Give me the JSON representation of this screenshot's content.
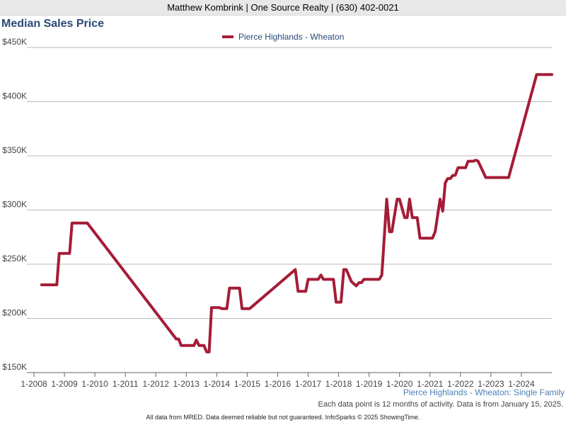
{
  "header": {
    "text": "Matthew Kombrink | One Source Realty | (630) 402-0021"
  },
  "chart_data": {
    "type": "line",
    "title": "Median Sales Price",
    "series": [
      {
        "name": "Pierce Highlands - Wheaton",
        "color": "#a51c36",
        "points": [
          [
            2008.25,
            231000
          ],
          [
            2008.75,
            231000
          ],
          [
            2008.83,
            260000
          ],
          [
            2009.17,
            260000
          ],
          [
            2009.25,
            288000
          ],
          [
            2009.75,
            288000
          ],
          [
            2012.67,
            181000
          ],
          [
            2012.75,
            181000
          ],
          [
            2012.83,
            175000
          ],
          [
            2013.25,
            175000
          ],
          [
            2013.33,
            180000
          ],
          [
            2013.42,
            175000
          ],
          [
            2013.58,
            175000
          ],
          [
            2013.67,
            169000
          ],
          [
            2013.75,
            169000
          ],
          [
            2013.83,
            210000
          ],
          [
            2014.08,
            210000
          ],
          [
            2014.17,
            209000
          ],
          [
            2014.33,
            209000
          ],
          [
            2014.42,
            228000
          ],
          [
            2014.75,
            228000
          ],
          [
            2014.83,
            209000
          ],
          [
            2015.08,
            209000
          ],
          [
            2016.58,
            245000
          ],
          [
            2016.67,
            225000
          ],
          [
            2016.92,
            225000
          ],
          [
            2017.0,
            236000
          ],
          [
            2017.33,
            236000
          ],
          [
            2017.42,
            240000
          ],
          [
            2017.5,
            236000
          ],
          [
            2017.83,
            236000
          ],
          [
            2017.92,
            215000
          ],
          [
            2018.08,
            215000
          ],
          [
            2018.17,
            245000
          ],
          [
            2018.25,
            245000
          ],
          [
            2018.42,
            234000
          ],
          [
            2018.58,
            230000
          ],
          [
            2018.67,
            233000
          ],
          [
            2018.75,
            233000
          ],
          [
            2018.83,
            236000
          ],
          [
            2019.33,
            236000
          ],
          [
            2019.42,
            240000
          ],
          [
            2019.58,
            310000
          ],
          [
            2019.67,
            280000
          ],
          [
            2019.75,
            280000
          ],
          [
            2019.92,
            310000
          ],
          [
            2020.0,
            310000
          ],
          [
            2020.17,
            293000
          ],
          [
            2020.25,
            293000
          ],
          [
            2020.33,
            310000
          ],
          [
            2020.42,
            293000
          ],
          [
            2020.58,
            293000
          ],
          [
            2020.67,
            274000
          ],
          [
            2021.08,
            274000
          ],
          [
            2021.17,
            280000
          ],
          [
            2021.33,
            310000
          ],
          [
            2021.42,
            299000
          ],
          [
            2021.5,
            325000
          ],
          [
            2021.58,
            329000
          ],
          [
            2021.67,
            329000
          ],
          [
            2021.75,
            332000
          ],
          [
            2021.83,
            332000
          ],
          [
            2021.92,
            339000
          ],
          [
            2022.17,
            339000
          ],
          [
            2022.25,
            345000
          ],
          [
            2022.42,
            345000
          ],
          [
            2022.5,
            346000
          ],
          [
            2022.58,
            345000
          ],
          [
            2022.83,
            330000
          ],
          [
            2023.58,
            330000
          ],
          [
            2024.5,
            425000
          ],
          [
            2025.0,
            425000
          ]
        ]
      }
    ],
    "y_ticks": [
      150000,
      200000,
      250000,
      300000,
      350000,
      400000,
      450000
    ],
    "y_tick_labels": [
      "$150K",
      "$200K",
      "$250K",
      "$300K",
      "$350K",
      "$400K",
      "$450K"
    ],
    "x_ticks": [
      2008,
      2009,
      2010,
      2011,
      2012,
      2013,
      2014,
      2015,
      2016,
      2017,
      2018,
      2019,
      2020,
      2021,
      2022,
      2023,
      2024
    ],
    "x_tick_labels": [
      "1-2008",
      "1-2009",
      "1-2010",
      "1-2011",
      "1-2012",
      "1-2013",
      "1-2014",
      "1-2015",
      "1-2016",
      "1-2017",
      "1-2018",
      "1-2019",
      "1-2020",
      "1-2021",
      "1-2022",
      "1-2023",
      "1-2024"
    ],
    "xlim": [
      2008,
      2025
    ],
    "ylim": [
      150000,
      450000
    ],
    "grid": true,
    "legend_position": "top-center",
    "xlabel": "",
    "ylabel": ""
  },
  "footer": {
    "series_label": "Pierce Highlands - Wheaton: Single Family",
    "note": "Each data point is 12 months of activity. Data is from January 15, 2025.",
    "disclaimer": "All data from MRED. Data deemed reliable but not guaranteed. InfoSparks © 2025 ShowingTime."
  }
}
